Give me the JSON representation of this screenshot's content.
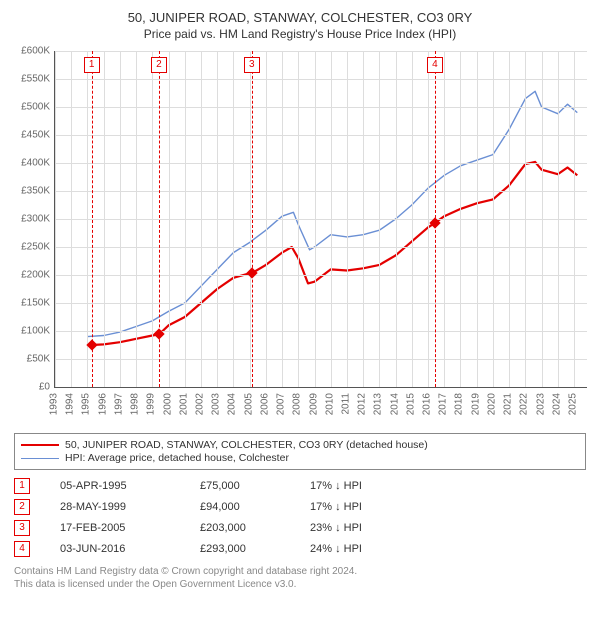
{
  "title_line1": "50, JUNIPER ROAD, STANWAY, COLCHESTER, CO3 0RY",
  "title_line2": "Price paid vs. HM Land Registry's House Price Index (HPI)",
  "chart": {
    "type": "line",
    "background_color": "#ffffff",
    "axis_color": "#555555",
    "grid_color": "#dddddd",
    "xlim": [
      1993,
      2025.8
    ],
    "ylim": [
      0,
      600000
    ],
    "ytick_step": 50000,
    "yticks": [
      "£0",
      "£50K",
      "£100K",
      "£150K",
      "£200K",
      "£250K",
      "£300K",
      "£350K",
      "£400K",
      "£450K",
      "£500K",
      "£550K",
      "£600K"
    ],
    "xticks": [
      1993,
      1994,
      1995,
      1996,
      1997,
      1998,
      1999,
      2000,
      2001,
      2002,
      2003,
      2004,
      2005,
      2006,
      2007,
      2008,
      2009,
      2010,
      2011,
      2012,
      2013,
      2014,
      2015,
      2016,
      2017,
      2018,
      2019,
      2020,
      2021,
      2022,
      2023,
      2024,
      2025
    ],
    "ytick_fontsize": 10,
    "xtick_fontsize": 10,
    "series": [
      {
        "name": "50, JUNIPER ROAD, STANWAY, COLCHESTER, CO3 0RY (detached house)",
        "color": "#e40000",
        "width": 2.2,
        "points": [
          [
            1995.26,
            75000
          ],
          [
            1996,
            76000
          ],
          [
            1997,
            80000
          ],
          [
            1998,
            86000
          ],
          [
            1999,
            92000
          ],
          [
            1999.41,
            94000
          ],
          [
            2000,
            110000
          ],
          [
            2001,
            125000
          ],
          [
            2002,
            150000
          ],
          [
            2003,
            175000
          ],
          [
            2004,
            195000
          ],
          [
            2005,
            203000
          ],
          [
            2005.13,
            203000
          ],
          [
            2006,
            218000
          ],
          [
            2007,
            240000
          ],
          [
            2007.6,
            250000
          ],
          [
            2008,
            230000
          ],
          [
            2008.6,
            185000
          ],
          [
            2009,
            188000
          ],
          [
            2010,
            210000
          ],
          [
            2011,
            208000
          ],
          [
            2012,
            212000
          ],
          [
            2013,
            218000
          ],
          [
            2014,
            235000
          ],
          [
            2015,
            260000
          ],
          [
            2016,
            285000
          ],
          [
            2016.42,
            293000
          ],
          [
            2017,
            305000
          ],
          [
            2018,
            318000
          ],
          [
            2019,
            328000
          ],
          [
            2020,
            335000
          ],
          [
            2021,
            360000
          ],
          [
            2022,
            398000
          ],
          [
            2022.6,
            402000
          ],
          [
            2023,
            388000
          ],
          [
            2024,
            380000
          ],
          [
            2024.6,
            392000
          ],
          [
            2025.2,
            378000
          ]
        ],
        "markers": [
          {
            "x": 1995.26,
            "y": 75000
          },
          {
            "x": 1999.41,
            "y": 94000
          },
          {
            "x": 2005.13,
            "y": 203000
          },
          {
            "x": 2016.42,
            "y": 293000
          }
        ],
        "marker_color": "#e40000",
        "marker_size": 8
      },
      {
        "name": "HPI: Average price, detached house, Colchester",
        "color": "#6a8fd4",
        "width": 1.4,
        "points": [
          [
            1995,
            90000
          ],
          [
            1996,
            92000
          ],
          [
            1997,
            98000
          ],
          [
            1998,
            108000
          ],
          [
            1999,
            118000
          ],
          [
            2000,
            135000
          ],
          [
            2001,
            150000
          ],
          [
            2002,
            180000
          ],
          [
            2003,
            210000
          ],
          [
            2004,
            240000
          ],
          [
            2005,
            258000
          ],
          [
            2006,
            280000
          ],
          [
            2007,
            305000
          ],
          [
            2007.7,
            312000
          ],
          [
            2008,
            290000
          ],
          [
            2008.7,
            245000
          ],
          [
            2009,
            250000
          ],
          [
            2010,
            272000
          ],
          [
            2011,
            268000
          ],
          [
            2012,
            272000
          ],
          [
            2013,
            280000
          ],
          [
            2014,
            300000
          ],
          [
            2015,
            325000
          ],
          [
            2016,
            355000
          ],
          [
            2017,
            378000
          ],
          [
            2018,
            395000
          ],
          [
            2019,
            405000
          ],
          [
            2020,
            415000
          ],
          [
            2021,
            460000
          ],
          [
            2022,
            515000
          ],
          [
            2022.6,
            528000
          ],
          [
            2023,
            500000
          ],
          [
            2024,
            488000
          ],
          [
            2024.6,
            505000
          ],
          [
            2025.2,
            490000
          ]
        ]
      }
    ],
    "sale_lines": {
      "color": "#e40000",
      "label_border": "#e40000",
      "dash": "4,3",
      "items": [
        {
          "idx": "1",
          "x": 1995.26
        },
        {
          "idx": "2",
          "x": 1999.41
        },
        {
          "idx": "3",
          "x": 2005.13
        },
        {
          "idx": "4",
          "x": 2016.42
        }
      ]
    }
  },
  "legend": {
    "border_color": "#888888",
    "items": [
      {
        "color": "#e40000",
        "width": 2.2,
        "label": "50, JUNIPER ROAD, STANWAY, COLCHESTER, CO3 0RY (detached house)"
      },
      {
        "color": "#6a8fd4",
        "width": 1.4,
        "label": "HPI: Average price, detached house, Colchester"
      }
    ]
  },
  "sales_table": {
    "idx_border": "#e40000",
    "rows": [
      {
        "idx": "1",
        "date": "05-APR-1995",
        "price": "£75,000",
        "pct": "17% ↓ HPI"
      },
      {
        "idx": "2",
        "date": "28-MAY-1999",
        "price": "£94,000",
        "pct": "17% ↓ HPI"
      },
      {
        "idx": "3",
        "date": "17-FEB-2005",
        "price": "£203,000",
        "pct": "23% ↓ HPI"
      },
      {
        "idx": "4",
        "date": "03-JUN-2016",
        "price": "£293,000",
        "pct": "24% ↓ HPI"
      }
    ]
  },
  "footer_line1": "Contains HM Land Registry data © Crown copyright and database right 2024.",
  "footer_line2": "This data is licensed under the Open Government Licence v3.0."
}
